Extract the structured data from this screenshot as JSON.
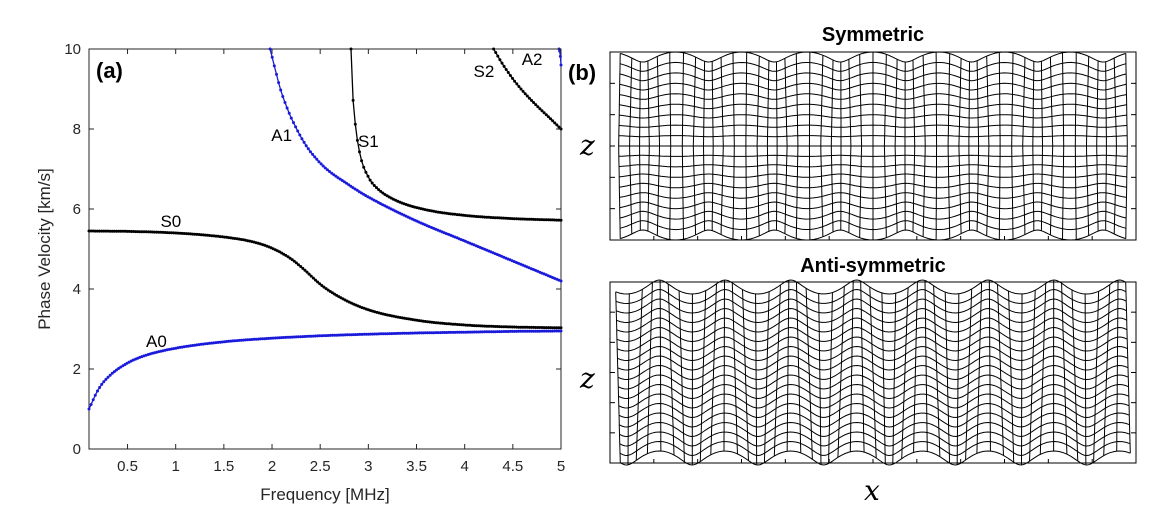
{
  "panel_a": "(a)",
  "panel_b": "(b)",
  "chart_data": {
    "type": "line",
    "title": "",
    "xlabel": "Frequency [MHz]",
    "ylabel": "Phase Velocity [km/s]",
    "xlim": [
      0.1,
      5
    ],
    "ylim": [
      0,
      10
    ],
    "xticks": [
      0.5,
      1,
      1.5,
      2,
      2.5,
      3,
      3.5,
      4,
      4.5,
      5
    ],
    "xtick_labels": [
      "0.5",
      "1",
      "1.5",
      "2",
      "2.5",
      "3",
      "3.5",
      "4",
      "4.5",
      "5"
    ],
    "yticks": [
      0,
      2,
      4,
      6,
      8,
      10
    ],
    "ytick_labels": [
      "0",
      "2",
      "4",
      "6",
      "8",
      "10"
    ],
    "grid": false,
    "series": [
      {
        "name": "A0",
        "color": "#1a1adb",
        "x": [
          0.1,
          0.2,
          0.3,
          0.5,
          0.7,
          1.0,
          1.5,
          2.0,
          2.5,
          3.0,
          3.5,
          4.0,
          4.5,
          5.0
        ],
        "y": [
          1.0,
          1.5,
          1.8,
          2.15,
          2.35,
          2.52,
          2.68,
          2.77,
          2.83,
          2.87,
          2.9,
          2.92,
          2.94,
          2.95
        ]
      },
      {
        "name": "S0",
        "color": "#000000",
        "x": [
          0.1,
          0.5,
          1.0,
          1.5,
          1.8,
          2.0,
          2.2,
          2.35,
          2.5,
          2.7,
          3.0,
          3.5,
          4.0,
          4.5,
          5.0
        ],
        "y": [
          5.45,
          5.44,
          5.4,
          5.3,
          5.18,
          5.02,
          4.75,
          4.45,
          4.12,
          3.8,
          3.48,
          3.22,
          3.1,
          3.05,
          3.03
        ]
      },
      {
        "name": "A1",
        "color": "#1a1adb",
        "x": [
          1.98,
          2.1,
          2.3,
          2.5,
          2.8,
          3.0,
          3.5,
          4.0,
          4.5,
          5.0
        ],
        "y": [
          10.0,
          8.9,
          7.8,
          7.15,
          6.6,
          6.3,
          5.7,
          5.2,
          4.7,
          4.2
        ]
      },
      {
        "name": "S1",
        "color": "#000000",
        "x": [
          2.82,
          2.84,
          2.87,
          2.92,
          3.0,
          3.1,
          3.3,
          3.6,
          4.0,
          4.5,
          5.0
        ],
        "y": [
          10.0,
          8.8,
          8.0,
          7.3,
          6.8,
          6.5,
          6.2,
          5.98,
          5.84,
          5.76,
          5.72
        ]
      },
      {
        "name": "S2",
        "color": "#000000",
        "x": [
          4.3,
          4.4,
          4.55,
          4.7,
          4.85,
          5.0
        ],
        "y": [
          10.0,
          9.6,
          9.1,
          8.7,
          8.35,
          8.0
        ]
      },
      {
        "name": "A2",
        "color": "#1a1adb",
        "x": [
          4.98,
          4.99,
          5.0
        ],
        "y": [
          10.0,
          9.9,
          9.6
        ]
      }
    ],
    "annotations": [
      {
        "text": "A0",
        "x": 0.8,
        "y": 2.55
      },
      {
        "text": "S0",
        "x": 0.95,
        "y": 5.55
      },
      {
        "text": "A1",
        "x": 2.1,
        "y": 7.7
      },
      {
        "text": "S1",
        "x": 3.0,
        "y": 7.55
      },
      {
        "text": "S2",
        "x": 4.2,
        "y": 9.3
      },
      {
        "text": "A2",
        "x": 4.7,
        "y": 9.6
      }
    ]
  },
  "mode_shapes": {
    "symmetric_title": "Symmetric",
    "antisymmetric_title": "Anti-symmetric",
    "z_label": "z",
    "x_label": "x"
  }
}
